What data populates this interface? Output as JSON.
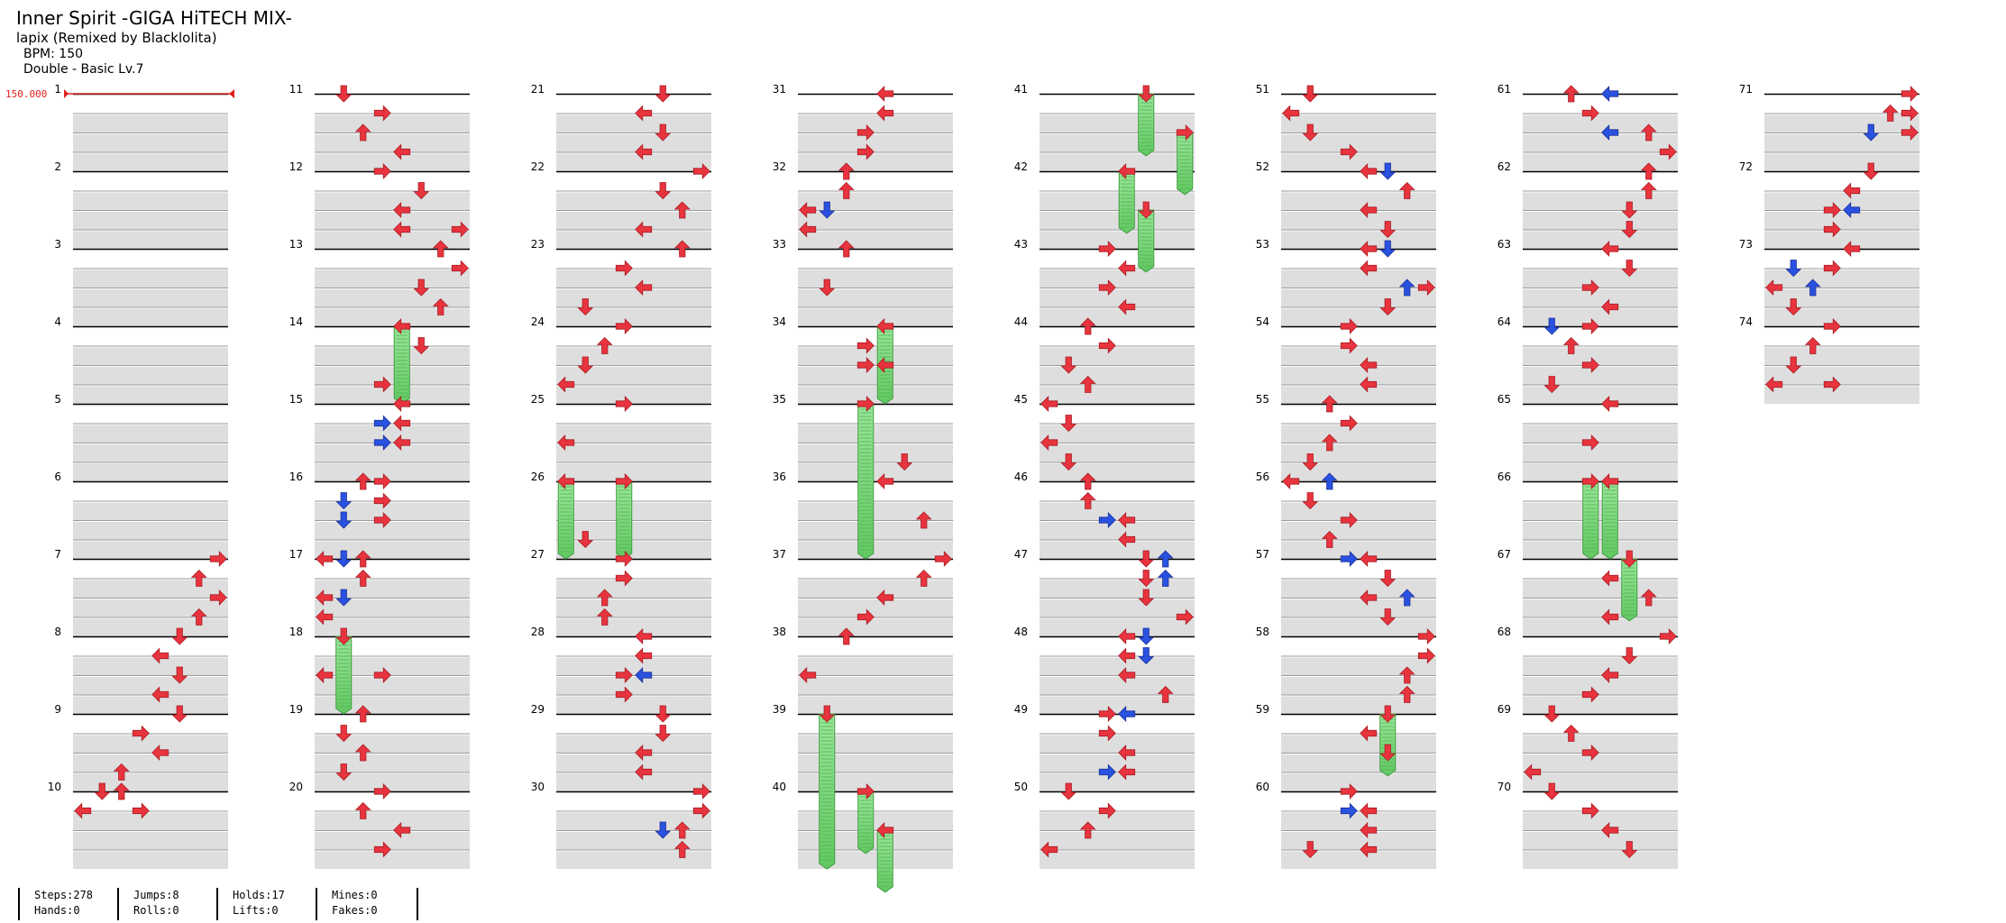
{
  "song": {
    "title": "Inner Spirit -GIGA HiTECH MIX-",
    "artist": "lapix (Remixed by Blacklolita)",
    "bpm": "BPM: 150",
    "difficulty": "Double - Basic Lv.7"
  },
  "chart_data": {
    "type": "step-chart",
    "style": "Double",
    "lanes": 8,
    "lane_order": [
      "left",
      "down",
      "up",
      "right",
      "left",
      "down",
      "up",
      "right"
    ],
    "columns": 8,
    "measures_per_column": 10,
    "rows_per_measure": 4,
    "bpm_marker": {
      "label": "150.000",
      "measure": 1
    },
    "colors": {
      "quarter": "#e8343e",
      "eighth": "#2a52e0",
      "hold": "#7fdc7f",
      "bpm": "#e02020"
    },
    "measure_labels": [
      "1",
      "2",
      "3",
      "4",
      "5",
      "6",
      "7",
      "8",
      "9",
      "10",
      "11",
      "12",
      "13",
      "14",
      "15",
      "16",
      "17",
      "18",
      "19",
      "20",
      "21",
      "22",
      "23",
      "24",
      "25",
      "26",
      "27",
      "28",
      "29",
      "30",
      "31",
      "32",
      "33",
      "34",
      "35",
      "36",
      "37",
      "38",
      "39",
      "40",
      "41",
      "42",
      "43",
      "44",
      "45",
      "46",
      "47",
      "48",
      "49",
      "50",
      "51",
      "52",
      "53",
      "54",
      "55",
      "56",
      "57",
      "58",
      "59",
      "60",
      "61",
      "62",
      "63",
      "64",
      "65",
      "66",
      "67",
      "68",
      "69",
      "70",
      "71",
      "72",
      "73",
      "74"
    ],
    "measure_count": 74,
    "notes": [
      [
        7,
        0,
        7,
        "q"
      ],
      [
        7,
        1,
        6,
        "q"
      ],
      [
        7,
        2,
        7,
        "q"
      ],
      [
        7,
        3,
        6,
        "q"
      ],
      [
        8,
        0,
        5,
        "q"
      ],
      [
        8,
        1,
        4,
        "q"
      ],
      [
        8,
        2,
        5,
        "q"
      ],
      [
        8,
        3,
        4,
        "q"
      ],
      [
        9,
        0,
        5,
        "q"
      ],
      [
        9,
        1,
        3,
        "q"
      ],
      [
        9,
        2,
        4,
        "q"
      ],
      [
        9,
        3,
        2,
        "q"
      ],
      [
        10,
        0,
        1,
        "q"
      ],
      [
        10,
        0,
        2,
        "q"
      ],
      [
        10,
        1,
        0,
        "q"
      ],
      [
        10,
        1,
        3,
        "q"
      ],
      [
        11,
        0,
        1,
        "q"
      ],
      [
        11,
        1,
        3,
        "q"
      ],
      [
        11,
        2,
        2,
        "q"
      ],
      [
        11,
        3,
        4,
        "q"
      ],
      [
        12,
        0,
        3,
        "q"
      ],
      [
        12,
        1,
        5,
        "q"
      ],
      [
        12,
        2,
        4,
        "q"
      ],
      [
        12,
        3,
        4,
        "q"
      ],
      [
        12,
        3,
        7,
        "q"
      ],
      [
        13,
        0,
        6,
        "q"
      ],
      [
        13,
        1,
        7,
        "q"
      ],
      [
        13,
        2,
        5,
        "q"
      ],
      [
        13,
        3,
        6,
        "q"
      ],
      [
        14,
        0,
        4,
        "h",
        1
      ],
      [
        14,
        1,
        5,
        "q"
      ],
      [
        14,
        3,
        3,
        "q"
      ],
      [
        15,
        0,
        4,
        "q"
      ],
      [
        15,
        1,
        3,
        "e"
      ],
      [
        15,
        1,
        4,
        "q"
      ],
      [
        15,
        2,
        3,
        "e"
      ],
      [
        15,
        2,
        4,
        "q"
      ],
      [
        16,
        0,
        2,
        "q"
      ],
      [
        16,
        0,
        3,
        "q"
      ],
      [
        16,
        1,
        1,
        "e"
      ],
      [
        16,
        1,
        3,
        "q"
      ],
      [
        16,
        2,
        1,
        "e"
      ],
      [
        16,
        2,
        3,
        "q"
      ],
      [
        17,
        0,
        0,
        "q"
      ],
      [
        17,
        0,
        1,
        "e"
      ],
      [
        17,
        0,
        2,
        "q"
      ],
      [
        17,
        1,
        2,
        "q"
      ],
      [
        17,
        2,
        0,
        "q"
      ],
      [
        17,
        2,
        1,
        "e"
      ],
      [
        17,
        3,
        0,
        "q"
      ],
      [
        18,
        0,
        1,
        "h",
        1
      ],
      [
        18,
        2,
        0,
        "q"
      ],
      [
        18,
        2,
        3,
        "q"
      ],
      [
        19,
        0,
        2,
        "q"
      ],
      [
        19,
        1,
        1,
        "q"
      ],
      [
        19,
        2,
        2,
        "q"
      ],
      [
        19,
        3,
        1,
        "q"
      ],
      [
        20,
        0,
        3,
        "q"
      ],
      [
        20,
        1,
        2,
        "q"
      ],
      [
        20,
        2,
        4,
        "q"
      ],
      [
        20,
        3,
        3,
        "q"
      ],
      [
        21,
        0,
        5,
        "q"
      ],
      [
        21,
        1,
        4,
        "q"
      ],
      [
        21,
        2,
        5,
        "q"
      ],
      [
        21,
        3,
        4,
        "q"
      ],
      [
        22,
        0,
        7,
        "q"
      ],
      [
        22,
        1,
        5,
        "q"
      ],
      [
        22,
        2,
        6,
        "q"
      ],
      [
        22,
        3,
        4,
        "q"
      ],
      [
        23,
        0,
        6,
        "q"
      ],
      [
        23,
        1,
        3,
        "q"
      ],
      [
        23,
        2,
        4,
        "q"
      ],
      [
        23,
        3,
        1,
        "q"
      ],
      [
        24,
        0,
        3,
        "q"
      ],
      [
        24,
        1,
        2,
        "q"
      ],
      [
        24,
        2,
        1,
        "q"
      ],
      [
        24,
        3,
        0,
        "q"
      ],
      [
        25,
        0,
        3,
        "q"
      ],
      [
        25,
        2,
        0,
        "q"
      ],
      [
        26,
        0,
        0,
        "h",
        1
      ],
      [
        26,
        0,
        3,
        "h",
        1
      ],
      [
        26,
        3,
        1,
        "q"
      ],
      [
        27,
        0,
        3,
        "q"
      ],
      [
        27,
        1,
        3,
        "q"
      ],
      [
        27,
        2,
        2,
        "q"
      ],
      [
        27,
        3,
        2,
        "q"
      ],
      [
        28,
        0,
        4,
        "q"
      ],
      [
        28,
        1,
        4,
        "q"
      ],
      [
        28,
        2,
        3,
        "q"
      ],
      [
        28,
        2,
        4,
        "e"
      ],
      [
        28,
        3,
        3,
        "q"
      ],
      [
        29,
        0,
        5,
        "q"
      ],
      [
        29,
        1,
        5,
        "q"
      ],
      [
        29,
        2,
        4,
        "q"
      ],
      [
        29,
        3,
        4,
        "q"
      ],
      [
        30,
        0,
        7,
        "q"
      ],
      [
        30,
        1,
        7,
        "q"
      ],
      [
        30,
        2,
        6,
        "q"
      ],
      [
        30,
        2,
        5,
        "e"
      ],
      [
        30,
        3,
        6,
        "q"
      ],
      [
        31,
        0,
        4,
        "q"
      ],
      [
        31,
        1,
        4,
        "q"
      ],
      [
        31,
        2,
        3,
        "q"
      ],
      [
        31,
        3,
        3,
        "q"
      ],
      [
        32,
        0,
        2,
        "q"
      ],
      [
        32,
        1,
        2,
        "q"
      ],
      [
        32,
        2,
        0,
        "q"
      ],
      [
        32,
        2,
        1,
        "e"
      ],
      [
        32,
        3,
        0,
        "q"
      ],
      [
        33,
        0,
        2,
        "q"
      ],
      [
        33,
        2,
        1,
        "q"
      ],
      [
        34,
        0,
        4,
        "h",
        1
      ],
      [
        34,
        1,
        3,
        "q"
      ],
      [
        34,
        2,
        3,
        "q"
      ],
      [
        34,
        2,
        4,
        "q"
      ],
      [
        35,
        0,
        3,
        "h",
        2
      ],
      [
        35,
        3,
        5,
        "q"
      ],
      [
        36,
        0,
        4,
        "q"
      ],
      [
        36,
        2,
        6,
        "q"
      ],
      [
        37,
        0,
        7,
        "q"
      ],
      [
        37,
        1,
        6,
        "q"
      ],
      [
        37,
        2,
        4,
        "q"
      ],
      [
        37,
        3,
        3,
        "q"
      ],
      [
        38,
        0,
        2,
        "q"
      ],
      [
        38,
        2,
        0,
        "q"
      ],
      [
        39,
        0,
        1,
        "h",
        2
      ],
      [
        40,
        0,
        3,
        "h",
        0.8
      ],
      [
        40,
        2,
        4,
        "h",
        0.8
      ],
      [
        41,
        0,
        5,
        "h",
        0.8
      ],
      [
        41,
        2,
        7,
        "h",
        0.8
      ],
      [
        42,
        0,
        4,
        "h",
        0.8
      ],
      [
        42,
        2,
        5,
        "h",
        0.8
      ],
      [
        43,
        0,
        3,
        "q"
      ],
      [
        43,
        1,
        4,
        "q"
      ],
      [
        43,
        2,
        3,
        "q"
      ],
      [
        43,
        3,
        4,
        "q"
      ],
      [
        44,
        0,
        2,
        "q"
      ],
      [
        44,
        1,
        3,
        "q"
      ],
      [
        44,
        2,
        1,
        "q"
      ],
      [
        44,
        3,
        2,
        "q"
      ],
      [
        45,
        0,
        0,
        "q"
      ],
      [
        45,
        1,
        1,
        "q"
      ],
      [
        45,
        2,
        0,
        "q"
      ],
      [
        45,
        3,
        1,
        "q"
      ],
      [
        46,
        0,
        2,
        "q"
      ],
      [
        46,
        1,
        2,
        "q"
      ],
      [
        46,
        2,
        3,
        "e"
      ],
      [
        46,
        2,
        4,
        "q"
      ],
      [
        46,
        3,
        4,
        "q"
      ],
      [
        47,
        0,
        5,
        "q"
      ],
      [
        47,
        0,
        6,
        "e"
      ],
      [
        47,
        1,
        5,
        "q"
      ],
      [
        47,
        1,
        6,
        "e"
      ],
      [
        47,
        2,
        5,
        "q"
      ],
      [
        47,
        3,
        7,
        "q"
      ],
      [
        48,
        0,
        4,
        "q"
      ],
      [
        48,
        0,
        5,
        "e"
      ],
      [
        48,
        1,
        4,
        "q"
      ],
      [
        48,
        1,
        5,
        "e"
      ],
      [
        48,
        2,
        4,
        "q"
      ],
      [
        48,
        3,
        6,
        "q"
      ],
      [
        49,
        0,
        3,
        "q"
      ],
      [
        49,
        0,
        4,
        "e"
      ],
      [
        49,
        1,
        3,
        "q"
      ],
      [
        49,
        2,
        4,
        "q"
      ],
      [
        49,
        3,
        3,
        "e"
      ],
      [
        49,
        3,
        4,
        "q"
      ],
      [
        50,
        0,
        1,
        "q"
      ],
      [
        50,
        1,
        3,
        "q"
      ],
      [
        50,
        2,
        2,
        "q"
      ],
      [
        50,
        3,
        0,
        "q"
      ],
      [
        51,
        0,
        1,
        "q"
      ],
      [
        51,
        1,
        0,
        "q"
      ],
      [
        51,
        2,
        1,
        "q"
      ],
      [
        51,
        3,
        3,
        "q"
      ],
      [
        52,
        0,
        4,
        "q"
      ],
      [
        52,
        0,
        5,
        "e"
      ],
      [
        52,
        1,
        6,
        "q"
      ],
      [
        52,
        2,
        4,
        "q"
      ],
      [
        52,
        3,
        5,
        "q"
      ],
      [
        53,
        0,
        4,
        "q"
      ],
      [
        53,
        0,
        5,
        "e"
      ],
      [
        53,
        1,
        4,
        "q"
      ],
      [
        53,
        2,
        7,
        "q"
      ],
      [
        53,
        2,
        6,
        "e"
      ],
      [
        53,
        3,
        5,
        "q"
      ],
      [
        54,
        0,
        3,
        "q"
      ],
      [
        54,
        1,
        3,
        "q"
      ],
      [
        54,
        2,
        4,
        "q"
      ],
      [
        54,
        3,
        4,
        "q"
      ],
      [
        55,
        0,
        2,
        "q"
      ],
      [
        55,
        1,
        3,
        "q"
      ],
      [
        55,
        2,
        2,
        "q"
      ],
      [
        55,
        3,
        1,
        "q"
      ],
      [
        56,
        0,
        0,
        "q"
      ],
      [
        56,
        0,
        2,
        "e"
      ],
      [
        56,
        1,
        1,
        "q"
      ],
      [
        56,
        2,
        3,
        "q"
      ],
      [
        56,
        3,
        2,
        "q"
      ],
      [
        57,
        0,
        3,
        "e"
      ],
      [
        57,
        0,
        4,
        "q"
      ],
      [
        57,
        1,
        5,
        "q"
      ],
      [
        57,
        2,
        4,
        "q"
      ],
      [
        57,
        2,
        6,
        "e"
      ],
      [
        57,
        3,
        5,
        "q"
      ],
      [
        58,
        0,
        7,
        "q"
      ],
      [
        58,
        1,
        7,
        "q"
      ],
      [
        58,
        2,
        6,
        "q"
      ],
      [
        58,
        3,
        6,
        "q"
      ],
      [
        59,
        0,
        5,
        "h",
        0.8
      ],
      [
        59,
        1,
        4,
        "q"
      ],
      [
        59,
        2,
        5,
        "q"
      ],
      [
        60,
        0,
        3,
        "q"
      ],
      [
        60,
        1,
        3,
        "e"
      ],
      [
        60,
        1,
        4,
        "q"
      ],
      [
        60,
        2,
        4,
        "q"
      ],
      [
        60,
        3,
        1,
        "q"
      ],
      [
        60,
        3,
        4,
        "q"
      ],
      [
        61,
        0,
        2,
        "q"
      ],
      [
        61,
        0,
        4,
        "e"
      ],
      [
        61,
        1,
        3,
        "q"
      ],
      [
        61,
        2,
        4,
        "e"
      ],
      [
        61,
        2,
        6,
        "q"
      ],
      [
        61,
        3,
        7,
        "q"
      ],
      [
        62,
        0,
        6,
        "q"
      ],
      [
        62,
        1,
        6,
        "q"
      ],
      [
        62,
        2,
        5,
        "q"
      ],
      [
        62,
        3,
        5,
        "q"
      ],
      [
        63,
        0,
        4,
        "q"
      ],
      [
        63,
        1,
        5,
        "q"
      ],
      [
        63,
        2,
        3,
        "q"
      ],
      [
        63,
        3,
        4,
        "q"
      ],
      [
        64,
        0,
        1,
        "e"
      ],
      [
        64,
        0,
        3,
        "q"
      ],
      [
        64,
        1,
        2,
        "q"
      ],
      [
        64,
        2,
        3,
        "q"
      ],
      [
        64,
        3,
        1,
        "q"
      ],
      [
        65,
        0,
        4,
        "q"
      ],
      [
        65,
        2,
        3,
        "q"
      ],
      [
        66,
        0,
        3,
        "h",
        1
      ],
      [
        66,
        0,
        4,
        "h",
        1
      ],
      [
        67,
        0,
        5,
        "h",
        0.8
      ],
      [
        67,
        1,
        4,
        "q"
      ],
      [
        67,
        2,
        6,
        "q"
      ],
      [
        67,
        3,
        4,
        "q"
      ],
      [
        68,
        0,
        7,
        "q"
      ],
      [
        68,
        1,
        5,
        "q"
      ],
      [
        68,
        2,
        4,
        "q"
      ],
      [
        68,
        3,
        3,
        "q"
      ],
      [
        69,
        0,
        1,
        "q"
      ],
      [
        69,
        1,
        2,
        "q"
      ],
      [
        69,
        2,
        3,
        "q"
      ],
      [
        69,
        3,
        0,
        "q"
      ],
      [
        70,
        0,
        1,
        "q"
      ],
      [
        70,
        1,
        3,
        "q"
      ],
      [
        70,
        2,
        4,
        "q"
      ],
      [
        70,
        3,
        5,
        "q"
      ],
      [
        71,
        0,
        7,
        "q"
      ],
      [
        71,
        1,
        6,
        "q"
      ],
      [
        71,
        1,
        7,
        "q"
      ],
      [
        71,
        2,
        5,
        "e"
      ],
      [
        71,
        2,
        7,
        "q"
      ],
      [
        72,
        0,
        5,
        "q"
      ],
      [
        72,
        1,
        4,
        "q"
      ],
      [
        72,
        2,
        3,
        "q"
      ],
      [
        72,
        2,
        4,
        "e"
      ],
      [
        72,
        3,
        3,
        "q"
      ],
      [
        73,
        0,
        4,
        "q"
      ],
      [
        73,
        1,
        1,
        "e"
      ],
      [
        73,
        1,
        3,
        "q"
      ],
      [
        73,
        2,
        0,
        "q"
      ],
      [
        73,
        2,
        2,
        "e"
      ],
      [
        73,
        3,
        1,
        "q"
      ],
      [
        74,
        0,
        3,
        "q"
      ],
      [
        74,
        1,
        2,
        "q"
      ],
      [
        74,
        2,
        1,
        "q"
      ],
      [
        74,
        3,
        0,
        "q"
      ],
      [
        74,
        3,
        3,
        "q"
      ]
    ]
  },
  "stats": {
    "steps": "Steps:278",
    "hands": "Hands:0",
    "jumps": "Jumps:8",
    "rolls": "Rolls:0",
    "holds": "Holds:17",
    "lifts": "Lifts:0",
    "mines": "Mines:0",
    "fakes": "Fakes:0"
  }
}
